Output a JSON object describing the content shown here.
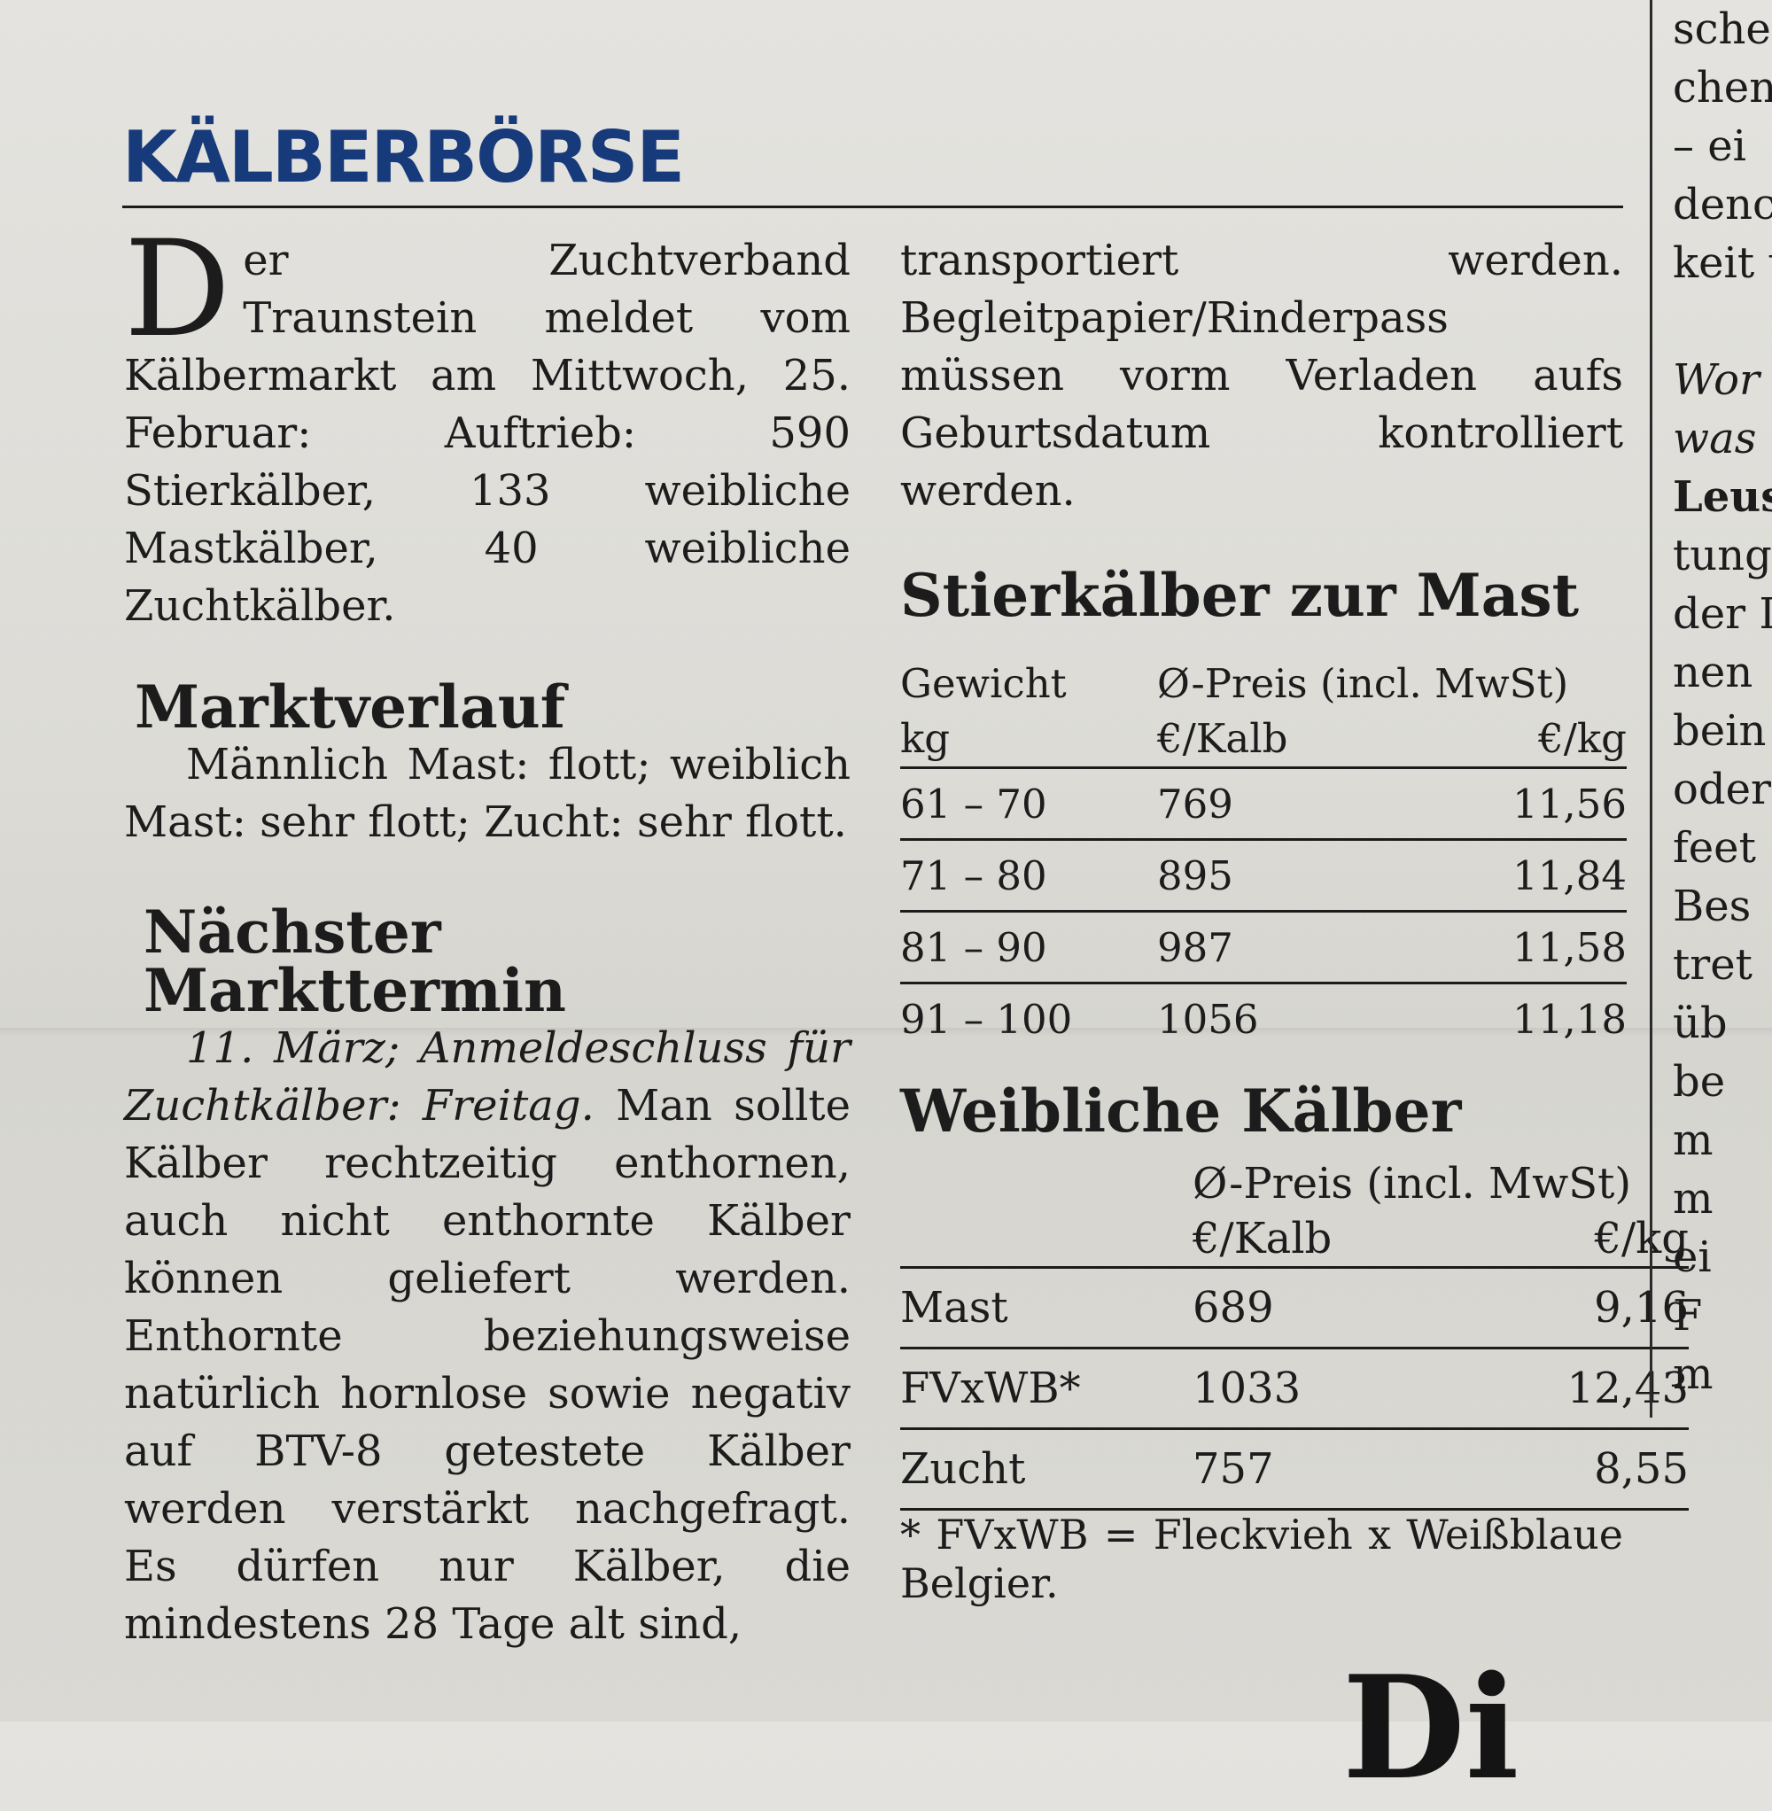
{
  "headline": "KÄLBERBÖRSE",
  "intro": {
    "dropcap": "D",
    "text": "er Zuchtverband Traunstein meldet vom Kälbermarkt am Mittwoch, 25. Februar: Auftrieb: 590 Stierkälber, 133 weibliche Mastkälber, 40 weibliche Zuchtkälber."
  },
  "marktverlauf": {
    "title": "Marktverlauf",
    "text": "Männlich Mast: flott; weiblich Mast: sehr flott; Zucht: sehr flott."
  },
  "naechster_termin": {
    "title": "Nächster Markttermin",
    "italic_text": "11. März; Anmeldeschluss für Zuchtkälber: Freitag.",
    "text": "Man sollte Kälber rechtzeitig enthornen, auch nicht enthornte Kälber können geliefert werden. Enthornte beziehungsweise natürlich hornlose sowie negativ auf BTV-8 getestete Kälber werden verstärkt nachgefragt. Es dürfen nur Kälber, die mindestens 28 Tage alt sind,"
  },
  "continuation": "transportiert werden. Begleitpapier/Rinderpass müssen vorm Verladen aufs Geburtsdatum kontrolliert werden.",
  "stierkaelber": {
    "title": "Stierkälber zur Mast",
    "header": {
      "col1_top": "Gewicht",
      "col1_bottom": "kg",
      "price_label": "Ø-Preis (incl. MwSt)",
      "col2": "€/Kalb",
      "col3": "€/kg"
    },
    "rows": [
      {
        "weight": "61 – 70",
        "per_calf": "769",
        "per_kg": "11,56"
      },
      {
        "weight": "71 – 80",
        "per_calf": "895",
        "per_kg": "11,84"
      },
      {
        "weight": "81 – 90",
        "per_calf": "987",
        "per_kg": "11,58"
      },
      {
        "weight": "91 – 100",
        "per_calf": "1056",
        "per_kg": "11,18"
      }
    ]
  },
  "weibliche": {
    "title": "Weibliche Kälber",
    "header": {
      "price_label": "Ø-Preis (incl. MwSt)",
      "col2": "€/Kalb",
      "col3": "€/kg"
    },
    "rows": [
      {
        "type": "Mast",
        "per_calf": "689",
        "per_kg": "9,16"
      },
      {
        "type": "FVxWB*",
        "per_calf": "1033",
        "per_kg": "12,43"
      },
      {
        "type": "Zucht",
        "per_calf": "757",
        "per_kg": "8,55"
      }
    ],
    "footnote": "* FVxWB = Fleckvieh x Weißblaue Belgier."
  },
  "right_column_fragments": [
    "sche",
    "chen",
    "– ei",
    "denc",
    "keit u",
    "",
    "Wor",
    "was",
    "Leus",
    "tung",
    "der I",
    "nen",
    "bein",
    "oder",
    "feet",
    "Bes",
    "tret",
    "üb",
    "be",
    "m",
    "m",
    "ei",
    "F",
    "m"
  ],
  "bottom_fragment": "Di"
}
